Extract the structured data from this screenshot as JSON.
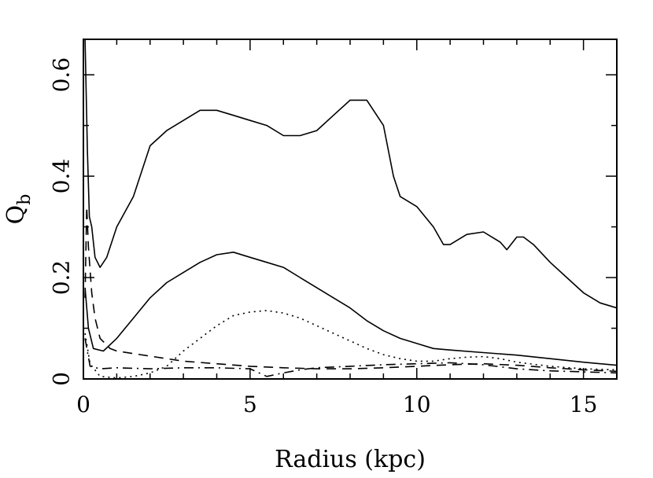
{
  "chart_data": {
    "type": "line",
    "title": "",
    "xlabel": "Radius (kpc)",
    "ylabel_main": "Q",
    "ylabel_sub": "b",
    "xlim": [
      0,
      16
    ],
    "ylim": [
      0,
      0.67
    ],
    "grid": false,
    "legend": "none",
    "x_ticks": [
      {
        "value": 0,
        "label": "0"
      },
      {
        "value": 5,
        "label": "5"
      },
      {
        "value": 10,
        "label": "10"
      },
      {
        "value": 15,
        "label": "15"
      }
    ],
    "y_ticks": [
      {
        "value": 0,
        "label": "0"
      },
      {
        "value": 0.2,
        "label": "0.2"
      },
      {
        "value": 0.4,
        "label": "0.4"
      },
      {
        "value": 0.6,
        "label": "0.6"
      }
    ],
    "series": [
      {
        "style": "solid",
        "points": [
          [
            0.05,
            0.67
          ],
          [
            0.12,
            0.45
          ],
          [
            0.18,
            0.32
          ],
          [
            0.25,
            0.3
          ],
          [
            0.35,
            0.24
          ],
          [
            0.5,
            0.22
          ],
          [
            0.7,
            0.24
          ],
          [
            1.0,
            0.3
          ],
          [
            1.5,
            0.36
          ],
          [
            2.0,
            0.46
          ],
          [
            2.5,
            0.49
          ],
          [
            3.0,
            0.51
          ],
          [
            3.5,
            0.53
          ],
          [
            4.0,
            0.53
          ],
          [
            4.5,
            0.52
          ],
          [
            5.0,
            0.51
          ],
          [
            5.5,
            0.5
          ],
          [
            6.0,
            0.48
          ],
          [
            6.5,
            0.48
          ],
          [
            7.0,
            0.49
          ],
          [
            7.5,
            0.52
          ],
          [
            8.0,
            0.55
          ],
          [
            8.5,
            0.55
          ],
          [
            9.0,
            0.5
          ],
          [
            9.3,
            0.4
          ],
          [
            9.5,
            0.36
          ],
          [
            10.0,
            0.34
          ],
          [
            10.5,
            0.3
          ],
          [
            10.8,
            0.265
          ],
          [
            11.0,
            0.265
          ],
          [
            11.5,
            0.285
          ],
          [
            12.0,
            0.29
          ],
          [
            12.5,
            0.27
          ],
          [
            12.7,
            0.255
          ],
          [
            13.0,
            0.28
          ],
          [
            13.2,
            0.28
          ],
          [
            13.5,
            0.265
          ],
          [
            14.0,
            0.23
          ],
          [
            14.5,
            0.2
          ],
          [
            15.0,
            0.17
          ],
          [
            15.5,
            0.15
          ],
          [
            16.0,
            0.14
          ]
        ]
      },
      {
        "style": "solid",
        "points": [
          [
            0.05,
            0.18
          ],
          [
            0.15,
            0.1
          ],
          [
            0.3,
            0.06
          ],
          [
            0.6,
            0.055
          ],
          [
            1.0,
            0.08
          ],
          [
            1.5,
            0.12
          ],
          [
            2.0,
            0.16
          ],
          [
            2.5,
            0.19
          ],
          [
            3.0,
            0.21
          ],
          [
            3.5,
            0.23
          ],
          [
            4.0,
            0.245
          ],
          [
            4.5,
            0.25
          ],
          [
            5.0,
            0.24
          ],
          [
            5.5,
            0.23
          ],
          [
            6.0,
            0.22
          ],
          [
            6.5,
            0.2
          ],
          [
            7.0,
            0.18
          ],
          [
            7.5,
            0.16
          ],
          [
            8.0,
            0.14
          ],
          [
            8.5,
            0.115
          ],
          [
            9.0,
            0.095
          ],
          [
            9.5,
            0.08
          ],
          [
            10.0,
            0.07
          ],
          [
            10.5,
            0.06
          ],
          [
            11.0,
            0.057
          ],
          [
            12.0,
            0.052
          ],
          [
            13.0,
            0.047
          ],
          [
            14.0,
            0.04
          ],
          [
            15.0,
            0.033
          ],
          [
            16.0,
            0.027
          ]
        ]
      },
      {
        "style": "dotted",
        "points": [
          [
            0.05,
            0.09
          ],
          [
            0.2,
            0.03
          ],
          [
            0.5,
            0.005
          ],
          [
            1.0,
            0.002
          ],
          [
            1.5,
            0.005
          ],
          [
            2.0,
            0.012
          ],
          [
            2.5,
            0.025
          ],
          [
            3.0,
            0.055
          ],
          [
            3.5,
            0.08
          ],
          [
            4.0,
            0.105
          ],
          [
            4.5,
            0.125
          ],
          [
            5.0,
            0.132
          ],
          [
            5.5,
            0.135
          ],
          [
            6.0,
            0.13
          ],
          [
            6.5,
            0.12
          ],
          [
            7.0,
            0.105
          ],
          [
            7.5,
            0.09
          ],
          [
            8.0,
            0.075
          ],
          [
            8.5,
            0.06
          ],
          [
            9.0,
            0.048
          ],
          [
            9.5,
            0.04
          ],
          [
            10.0,
            0.035
          ],
          [
            10.5,
            0.035
          ],
          [
            11.0,
            0.04
          ],
          [
            11.5,
            0.043
          ],
          [
            12.0,
            0.044
          ],
          [
            12.5,
            0.04
          ],
          [
            13.0,
            0.033
          ],
          [
            14.0,
            0.025
          ],
          [
            15.0,
            0.02
          ],
          [
            16.0,
            0.018
          ]
        ]
      },
      {
        "style": "dashed",
        "points": [
          [
            0.05,
            0.16
          ],
          [
            0.1,
            0.34
          ],
          [
            0.15,
            0.26
          ],
          [
            0.25,
            0.17
          ],
          [
            0.35,
            0.12
          ],
          [
            0.5,
            0.08
          ],
          [
            0.8,
            0.06
          ],
          [
            1.0,
            0.055
          ],
          [
            1.5,
            0.05
          ],
          [
            2.0,
            0.045
          ],
          [
            3.0,
            0.035
          ],
          [
            4.0,
            0.03
          ],
          [
            5.0,
            0.025
          ],
          [
            6.0,
            0.022
          ],
          [
            7.0,
            0.02
          ],
          [
            8.0,
            0.02
          ],
          [
            9.0,
            0.022
          ],
          [
            10.0,
            0.025
          ],
          [
            11.0,
            0.028
          ],
          [
            12.0,
            0.03
          ],
          [
            13.0,
            0.027
          ],
          [
            14.0,
            0.022
          ],
          [
            15.0,
            0.018
          ],
          [
            16.0,
            0.015
          ]
        ]
      },
      {
        "style": "dashdot",
        "points": [
          [
            0.05,
            0.08
          ],
          [
            0.2,
            0.025
          ],
          [
            0.5,
            0.02
          ],
          [
            1.0,
            0.022
          ],
          [
            2.0,
            0.02
          ],
          [
            3.0,
            0.022
          ],
          [
            4.0,
            0.022
          ],
          [
            5.0,
            0.02
          ],
          [
            5.5,
            0.005
          ],
          [
            6.0,
            0.012
          ],
          [
            6.5,
            0.018
          ],
          [
            7.0,
            0.022
          ],
          [
            8.0,
            0.025
          ],
          [
            9.0,
            0.028
          ],
          [
            10.0,
            0.03
          ],
          [
            11.0,
            0.032
          ],
          [
            12.0,
            0.028
          ],
          [
            13.0,
            0.02
          ],
          [
            14.0,
            0.016
          ],
          [
            15.0,
            0.014
          ],
          [
            16.0,
            0.012
          ]
        ]
      }
    ]
  }
}
